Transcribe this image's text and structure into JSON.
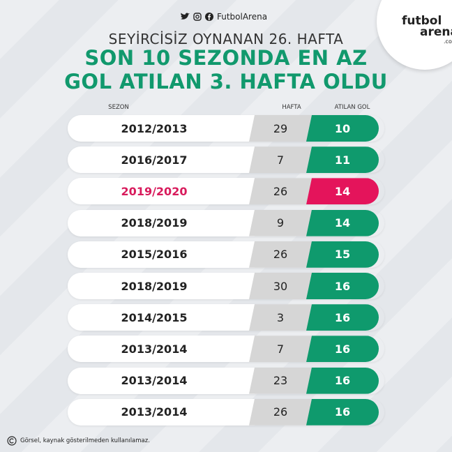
{
  "header": {
    "handle": "FutbolArena",
    "logo": [
      "futbol",
      "arena",
      ".com"
    ],
    "title": "SEYİRCİSİZ OYNANAN 26. HAFTA",
    "headline": [
      "SON 10 SEZONDA EN AZ",
      "GOL ATILAN 3. HAFTA OLDU"
    ]
  },
  "table": {
    "columns": [
      "SEZON",
      "HAFTA",
      "ATILAN GOL"
    ],
    "rows": [
      {
        "season": "2012/2013",
        "week": 29,
        "goals": 10
      },
      {
        "season": "2016/2017",
        "week": 7,
        "goals": 11
      },
      {
        "season": "2019/2020",
        "week": 26,
        "goals": 14,
        "highlighted": true
      },
      {
        "season": "2018/2019",
        "week": 9,
        "goals": 14
      },
      {
        "season": "2015/2016",
        "week": 26,
        "goals": 15
      },
      {
        "season": "2018/2019",
        "week": 30,
        "goals": 16
      },
      {
        "season": "2014/2015",
        "week": 3,
        "goals": 16
      },
      {
        "season": "2013/2014",
        "week": 7,
        "goals": 16
      },
      {
        "season": "2013/2014",
        "week": 23,
        "goals": 16
      },
      {
        "season": "2013/2014",
        "week": 26,
        "goals": 16
      }
    ]
  },
  "footer": "Görsel, kaynak gösterilmeden kullanılamaz."
}
